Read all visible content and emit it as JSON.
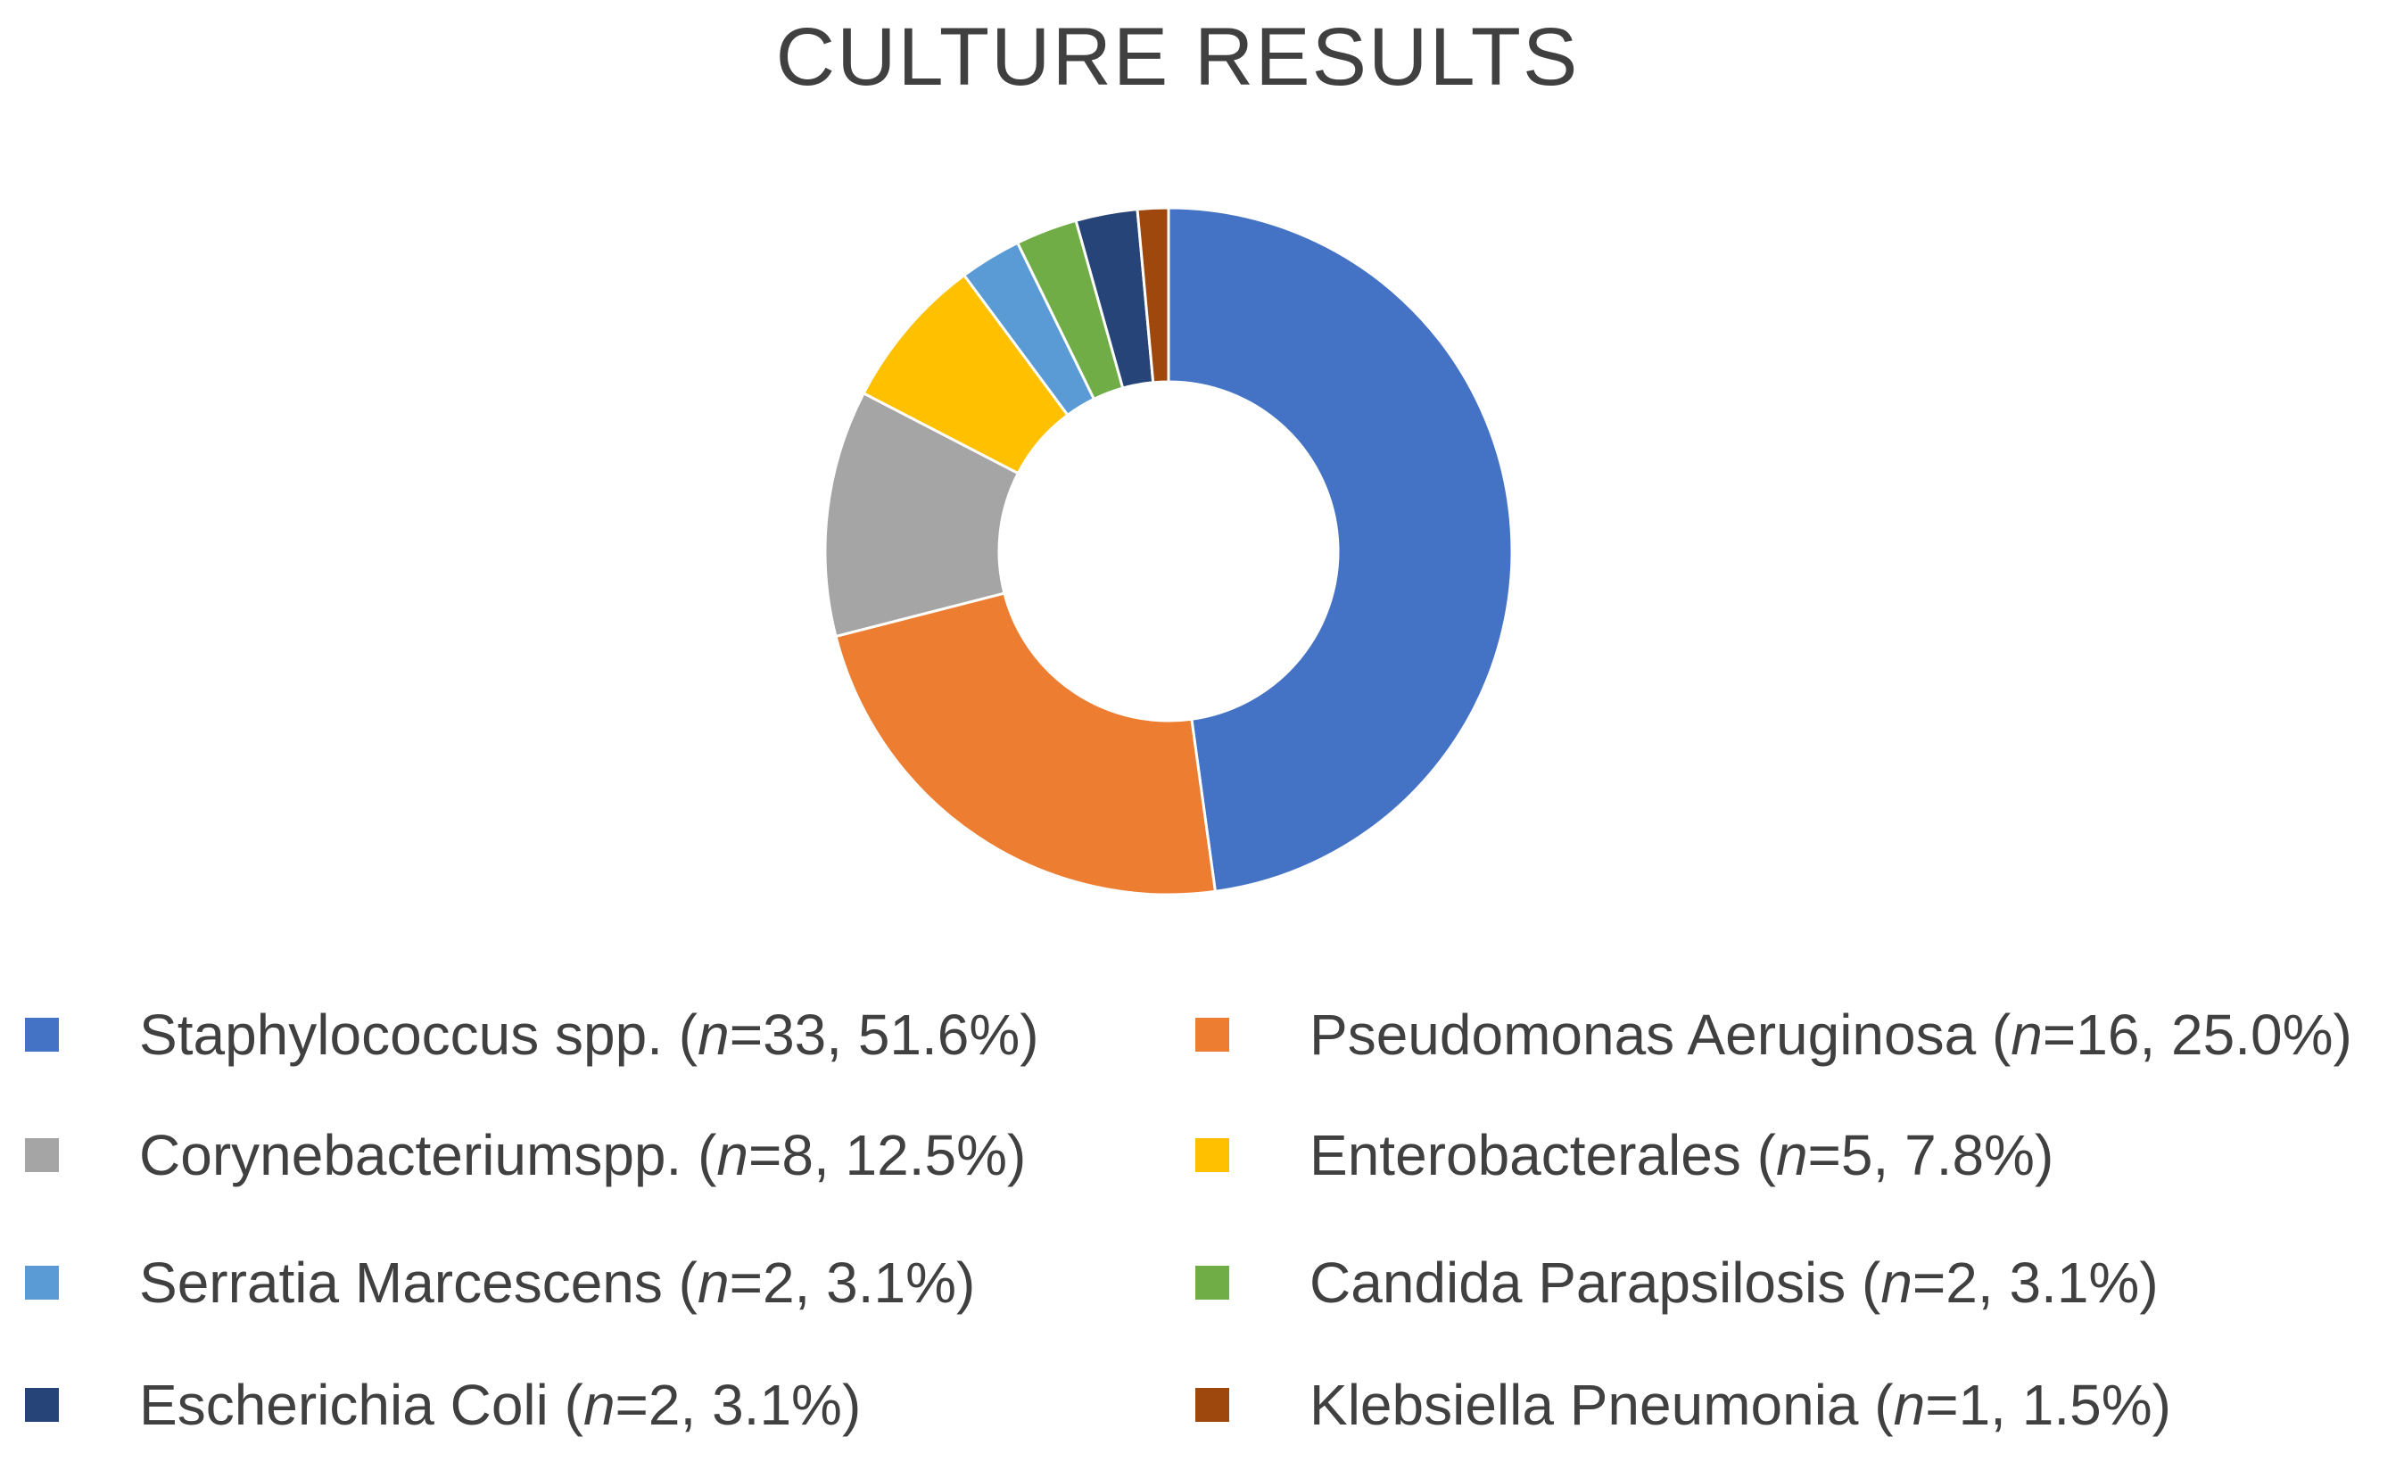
{
  "chart_data": {
    "type": "pie",
    "title": "CULTURE RESULTS",
    "donut": true,
    "categories": [
      "Staphylococcus spp.",
      "Pseudomonas Aeruginosa",
      "Corynebacteriumspp.",
      "Enterobacterales",
      "Serratia Marcescens",
      "Candida Parapsilosis",
      "Escherichia Coli",
      "Klebsiella Pneumonia"
    ],
    "values": [
      33,
      16,
      8,
      5,
      2,
      2,
      2,
      1
    ],
    "percentages": [
      "51.6%",
      "25.0%",
      "12.5%",
      "7.8%",
      "3.1%",
      "3.1%",
      "3.1%",
      "1.5%"
    ],
    "colors": [
      "#4472C4",
      "#ED7D31",
      "#A5A5A5",
      "#FFC000",
      "#5B9BD5",
      "#70AD47",
      "#264478",
      "#9E480E"
    ],
    "legend_position": "bottom",
    "legend": [
      {
        "name": "Staphylococcus spp.",
        "n_label": "n",
        "rest": "=33, 51.6%)",
        "open": " (",
        "color": "#4472C4"
      },
      {
        "name": "Pseudomonas Aeruginosa",
        "n_label": "n",
        "rest": "=16, 25.0%)",
        "open": " (",
        "color": "#ED7D31"
      },
      {
        "name": "Corynebacteriumspp.",
        "n_label": "n",
        "rest": "=8, 12.5%)",
        "open": " (",
        "color": "#A5A5A5"
      },
      {
        "name": "Enterobacterales",
        "n_label": "n",
        "rest": "=5, 7.8%)",
        "open": " (",
        "color": "#FFC000"
      },
      {
        "name": "Serratia Marcescens",
        "n_label": "n",
        "rest": "=2, 3.1%)",
        "open": " (",
        "color": "#5B9BD5"
      },
      {
        "name": "Candida Parapsilosis",
        "n_label": "n",
        "rest": "=2, 3.1%)",
        "open": " (",
        "color": "#70AD47"
      },
      {
        "name": "Escherichia Coli",
        "n_label": "n",
        "rest": "=2, 3.1%)",
        "open": " (",
        "color": "#264478"
      },
      {
        "name": "Klebsiella Pneumonia",
        "n_label": "n",
        "rest": "=1, 1.5%)",
        "open": " (",
        "color": "#9E480E"
      }
    ]
  }
}
